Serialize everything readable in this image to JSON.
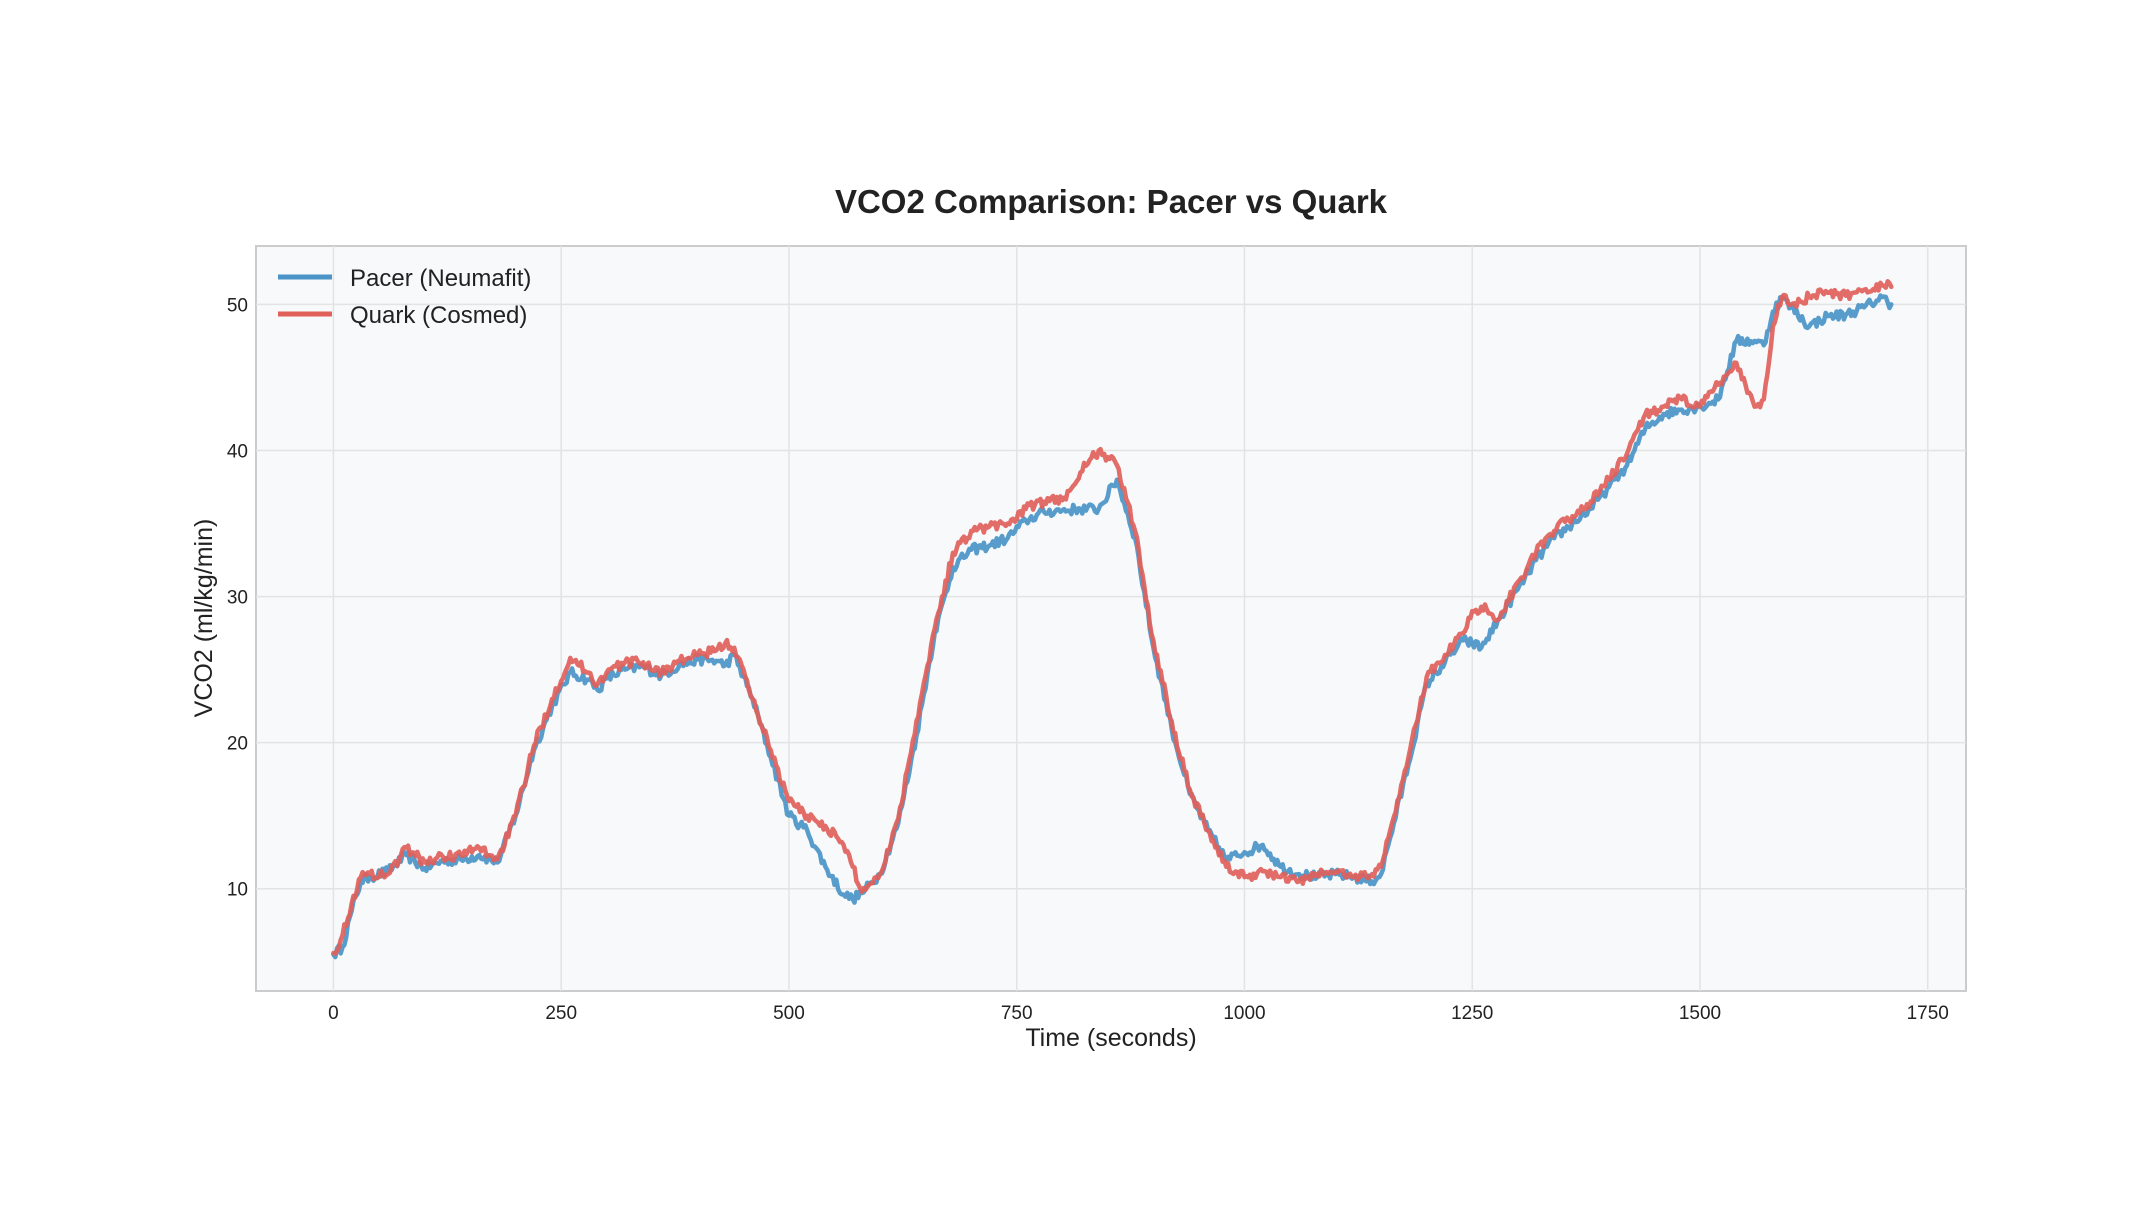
{
  "chart_data": {
    "type": "line",
    "title": "VCO2 Comparison: Pacer vs Quark",
    "xlabel": "Time (seconds)",
    "ylabel": "VCO2 (ml/kg/min)",
    "xlim": [
      -85,
      1792
    ],
    "ylim": [
      3.0,
      54.0
    ],
    "xticks": [
      0,
      250,
      500,
      750,
      1000,
      1250,
      1500,
      1750
    ],
    "yticks": [
      10,
      20,
      30,
      40,
      50
    ],
    "xtick_labels": [
      "0",
      "250",
      "500",
      "750",
      "1000",
      "1250",
      "1500",
      "1750"
    ],
    "ytick_labels": [
      "10",
      "20",
      "30",
      "40",
      "50"
    ],
    "grid": true,
    "legend_position": "top-left",
    "series": [
      {
        "name": "Pacer (Neumafit)",
        "color": "#4a94c7",
        "x": [
          0,
          10,
          20,
          30,
          40,
          60,
          80,
          100,
          120,
          140,
          160,
          180,
          200,
          220,
          240,
          260,
          280,
          290,
          300,
          320,
          340,
          360,
          380,
          400,
          420,
          430,
          440,
          460,
          480,
          500,
          520,
          540,
          560,
          570,
          580,
          600,
          620,
          640,
          660,
          680,
          700,
          720,
          740,
          760,
          780,
          800,
          820,
          840,
          860,
          880,
          900,
          920,
          940,
          960,
          980,
          1000,
          1020,
          1040,
          1060,
          1080,
          1100,
          1120,
          1140,
          1150,
          1160,
          1180,
          1200,
          1220,
          1240,
          1250,
          1260,
          1280,
          1300,
          1320,
          1340,
          1360,
          1380,
          1400,
          1420,
          1440,
          1460,
          1480,
          1500,
          1520,
          1540,
          1560,
          1570,
          1580,
          1590,
          1600,
          1620,
          1640,
          1660,
          1680,
          1700,
          1710
        ],
        "y": [
          5.5,
          6.0,
          8.5,
          10.5,
          10.8,
          11.2,
          12.3,
          11.4,
          11.9,
          12.0,
          12.3,
          11.8,
          15.0,
          19.5,
          22.5,
          24.8,
          24.3,
          23.6,
          24.4,
          25.0,
          25.2,
          24.6,
          25.3,
          25.7,
          25.6,
          25.3,
          26.0,
          23.0,
          19.0,
          15.0,
          14.0,
          11.5,
          9.6,
          9.3,
          9.7,
          11.0,
          14.5,
          20.5,
          27.5,
          32.0,
          33.2,
          33.5,
          34.0,
          35.2,
          35.8,
          35.9,
          36.0,
          36.0,
          38.0,
          34.0,
          26.5,
          21.0,
          16.5,
          14.0,
          12.0,
          12.5,
          13.0,
          11.5,
          11.0,
          10.8,
          11.0,
          10.8,
          10.5,
          11.0,
          13.5,
          18.5,
          24.0,
          25.5,
          27.0,
          26.8,
          26.5,
          28.5,
          30.5,
          32.5,
          34.0,
          35.0,
          36.0,
          37.5,
          39.0,
          41.5,
          42.5,
          42.8,
          43.0,
          43.5,
          47.5,
          47.5,
          47.2,
          49.5,
          50.5,
          49.8,
          48.5,
          49.2,
          49.3,
          49.8,
          50.5,
          50.0
        ]
      },
      {
        "name": "Quark (Cosmed)",
        "color": "#e0605a",
        "x": [
          0,
          10,
          20,
          30,
          40,
          60,
          80,
          100,
          120,
          140,
          160,
          180,
          200,
          220,
          240,
          260,
          280,
          290,
          300,
          320,
          340,
          360,
          380,
          400,
          420,
          430,
          440,
          460,
          480,
          500,
          520,
          540,
          560,
          570,
          580,
          600,
          620,
          640,
          660,
          680,
          700,
          720,
          740,
          760,
          780,
          800,
          820,
          840,
          860,
          880,
          900,
          920,
          940,
          960,
          980,
          1000,
          1020,
          1040,
          1060,
          1080,
          1100,
          1120,
          1140,
          1150,
          1160,
          1180,
          1200,
          1220,
          1240,
          1250,
          1260,
          1280,
          1300,
          1320,
          1340,
          1360,
          1380,
          1400,
          1420,
          1440,
          1460,
          1480,
          1500,
          1520,
          1540,
          1560,
          1570,
          1580,
          1590,
          1600,
          1620,
          1640,
          1660,
          1680,
          1700,
          1710
        ],
        "y": [
          5.6,
          6.8,
          9.0,
          10.8,
          11.0,
          11.0,
          12.8,
          11.8,
          12.2,
          12.3,
          12.8,
          12.0,
          15.0,
          19.8,
          23.0,
          25.8,
          24.8,
          24.0,
          24.8,
          25.5,
          25.5,
          24.8,
          25.6,
          26.0,
          26.3,
          26.8,
          26.5,
          23.0,
          19.5,
          16.0,
          15.0,
          14.3,
          13.0,
          11.5,
          9.8,
          11.0,
          14.8,
          21.5,
          27.8,
          33.0,
          34.5,
          34.8,
          35.0,
          36.0,
          36.5,
          36.6,
          38.5,
          40.0,
          39.0,
          34.5,
          27.0,
          21.5,
          16.8,
          14.0,
          11.5,
          10.8,
          11.2,
          10.8,
          10.5,
          11.0,
          11.2,
          10.8,
          11.0,
          11.5,
          14.0,
          19.0,
          24.5,
          26.0,
          27.5,
          29.0,
          29.3,
          28.5,
          31.0,
          33.0,
          34.5,
          35.5,
          36.5,
          38.0,
          39.8,
          42.5,
          43.0,
          43.5,
          43.0,
          44.5,
          46.0,
          43.0,
          43.5,
          48.5,
          50.5,
          50.0,
          50.5,
          50.8,
          50.6,
          51.0,
          51.3,
          51.2
        ]
      }
    ]
  }
}
